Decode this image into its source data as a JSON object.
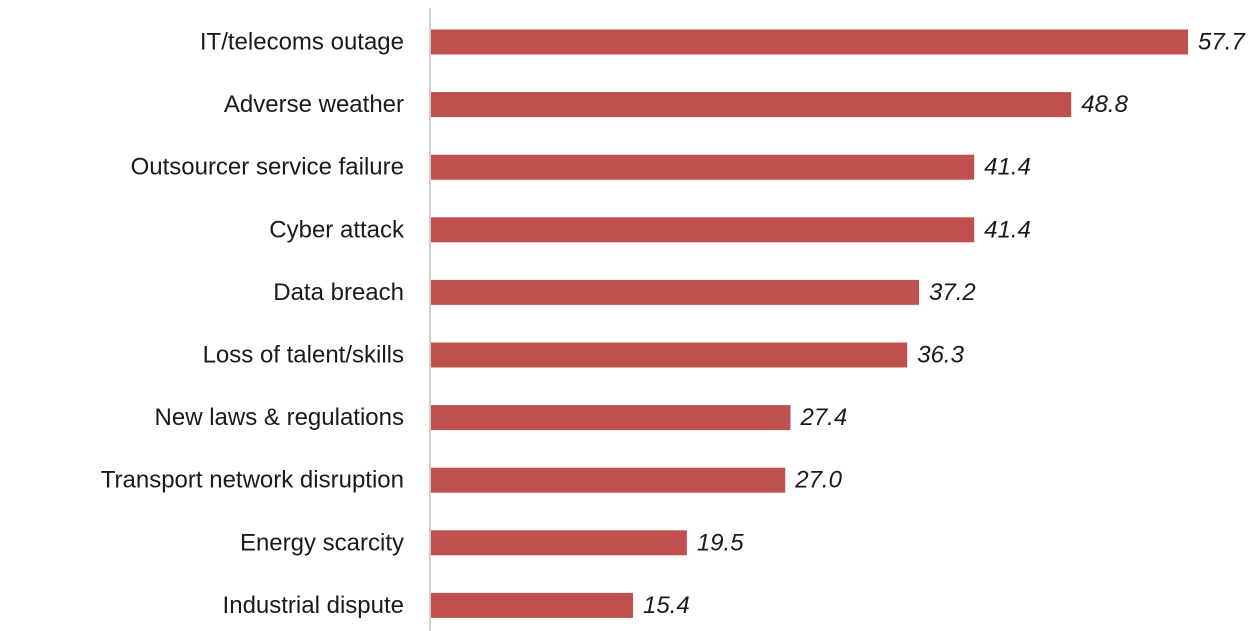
{
  "chart_data": {
    "type": "bar",
    "orientation": "horizontal",
    "title": "",
    "xlabel": "",
    "ylabel": "",
    "categories": [
      "IT/telecoms outage",
      "Adverse weather",
      "Outsourcer service failure",
      "Cyber attack",
      "Data breach",
      "Loss of talent/skills",
      "New laws & regulations",
      "Transport network disruption",
      "Energy scarcity",
      "Industrial dispute"
    ],
    "values": [
      57.7,
      48.8,
      41.4,
      41.4,
      37.2,
      36.3,
      27.4,
      27.0,
      19.5,
      15.4
    ],
    "value_labels": [
      "57.7",
      "48.8",
      "41.4",
      "41.4",
      "37.2",
      "36.3",
      "27.4",
      "27.0",
      "19.5",
      "15.4"
    ],
    "xlim": [
      0,
      60
    ],
    "grid": false,
    "legend": "none",
    "colors": {
      "bar": "#c0504d",
      "axis": "#bfbfbf",
      "text": "#1a1a1a"
    }
  }
}
